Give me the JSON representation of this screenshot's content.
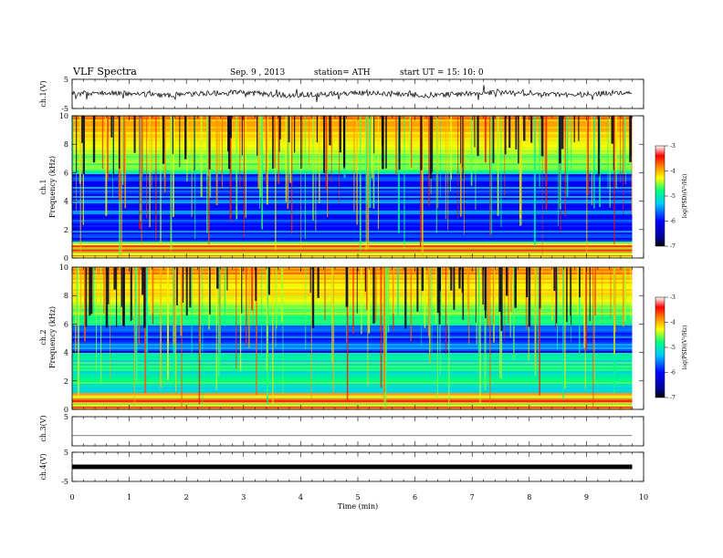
{
  "header": {
    "title": "VLF  Spectra",
    "date": "Sep. 9  , 2013",
    "station": "station= ATH",
    "start": "start  UT  =    15: 10: 0"
  },
  "chart_data": {
    "type": "heatmap",
    "x_axis": {
      "label": "Time  (min)",
      "range": [
        0,
        10
      ],
      "ticks": [
        "0",
        "1",
        "2",
        "3",
        "4",
        "5",
        "6",
        "7",
        "8",
        "9",
        "10"
      ],
      "data_end": 9.8
    },
    "panels": [
      {
        "id": "ch1-waveform",
        "type": "line",
        "ylabel": "ch.1(V)",
        "ylim": [
          -5,
          5
        ],
        "ticks": [
          "5",
          "-5"
        ],
        "baseline": 0
      },
      {
        "id": "ch1-spectrogram",
        "type": "heatmap",
        "ylabel": "ch.1\nFrequency  (kHz)",
        "ylabel_lines": [
          "ch.1",
          "Frequency  (kHz)"
        ],
        "ylim": [
          0,
          10
        ],
        "ticks": [
          "0",
          "2",
          "4",
          "6",
          "8",
          "10"
        ],
        "colorbar": {
          "label": "log(PSD)(V²/Hz)",
          "range": [
            -7,
            -3
          ],
          "ticks": [
            "-3",
            "-4",
            "-5",
            "-6",
            "-7"
          ]
        }
      },
      {
        "id": "ch2-spectrogram",
        "type": "heatmap",
        "ylabel_lines": [
          "ch.2",
          "Frequency  (kHz)"
        ],
        "ylim": [
          0,
          10
        ],
        "ticks": [
          "0",
          "2",
          "4",
          "6",
          "8",
          "10"
        ],
        "colorbar": {
          "label": "log(PSD)(V²/Hz)",
          "range": [
            -7,
            -3
          ],
          "ticks": [
            "-3",
            "-4",
            "-5",
            "-6",
            "-7"
          ]
        }
      },
      {
        "id": "ch3-waveform",
        "type": "line",
        "ylabel": "ch.3(V)",
        "ylim": [
          -5,
          5
        ],
        "ticks": [
          "5"
        ],
        "baseline": -1.5
      },
      {
        "id": "ch4-waveform",
        "type": "line",
        "ylabel": "ch.4(V)",
        "ylim": [
          -5,
          5
        ],
        "ticks": [
          "5",
          "-5"
        ],
        "baseline": 0
      }
    ],
    "colors": {
      "colormap": [
        "#000080",
        "#0000ff",
        "#00c8ff",
        "#00ff80",
        "#ffff00",
        "#ff8000",
        "#ff0000",
        "#ffffff"
      ]
    }
  }
}
